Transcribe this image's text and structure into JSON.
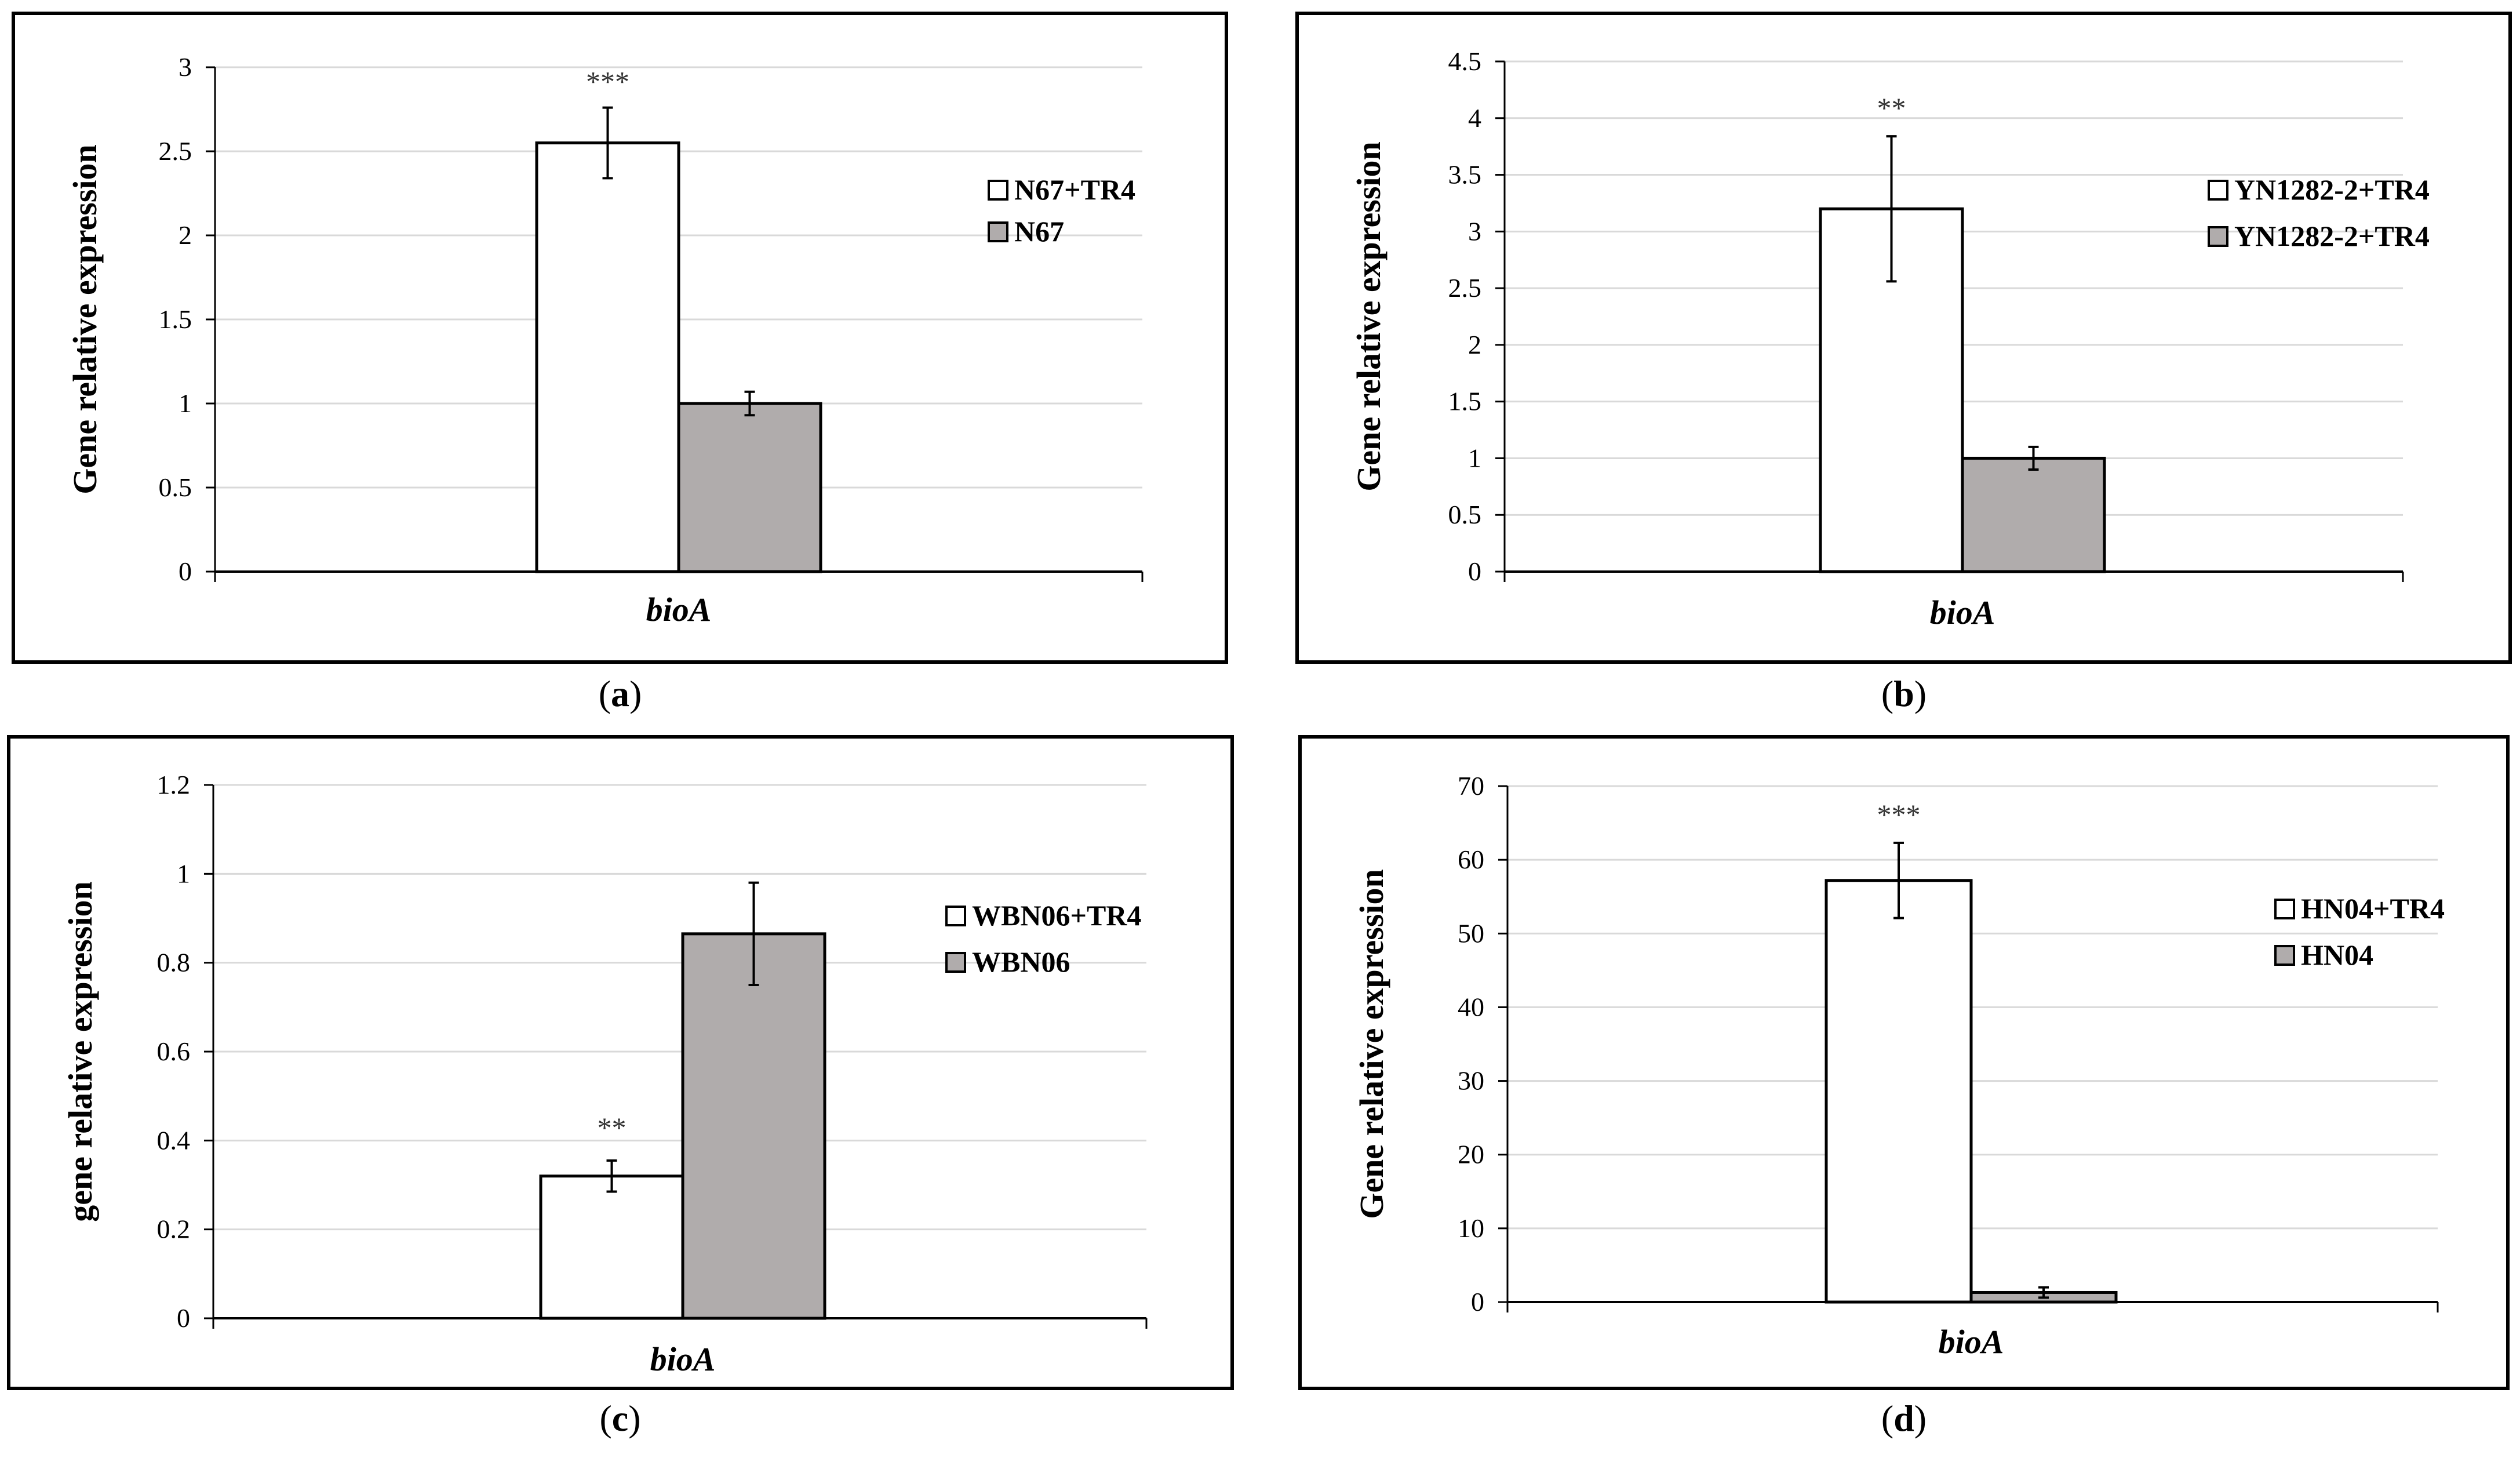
{
  "figure": {
    "captions": [
      "(a)",
      "(b)",
      "(c)",
      "(d)"
    ],
    "caption_letters": [
      "a",
      "b",
      "c",
      "d"
    ]
  },
  "colors": {
    "bar_treated": "#ffffff",
    "bar_control": "#b0acac",
    "grid": "#d9d9d9",
    "axis": "#000000",
    "stroke": "#000000"
  },
  "chart_data": [
    {
      "id": "a",
      "type": "bar",
      "categories": [
        "bioA"
      ],
      "ylabel": "Gene relative expression",
      "xlabel": "bioA",
      "ylim": [
        0,
        3
      ],
      "yticks": [
        0,
        0.5,
        1,
        1.5,
        2,
        2.5,
        3
      ],
      "ytick_labels": [
        "0",
        "0.5",
        "1",
        "1.5",
        "2",
        "2.5",
        "3"
      ],
      "legend_position": "right",
      "series": [
        {
          "name": "N67+TR4",
          "values": [
            2.55
          ],
          "error": [
            0.21
          ],
          "significance": "***"
        },
        {
          "name": "N67",
          "values": [
            1.0
          ],
          "error": [
            0.07
          ],
          "significance": ""
        }
      ]
    },
    {
      "id": "b",
      "type": "bar",
      "categories": [
        "bioA"
      ],
      "ylabel": "Gene relative expression",
      "xlabel": "bioA",
      "ylim": [
        0,
        4.5
      ],
      "yticks": [
        0,
        0.5,
        1,
        1.5,
        2,
        2.5,
        3,
        3.5,
        4,
        4.5
      ],
      "ytick_labels": [
        "0",
        "0.5",
        "1",
        "1.5",
        "2",
        "2.5",
        "3",
        "3.5",
        "4",
        "4.5"
      ],
      "legend_position": "right",
      "series": [
        {
          "name": "YN1282-2+TR4",
          "values": [
            3.2
          ],
          "error": [
            0.64
          ],
          "significance": "**"
        },
        {
          "name": "YN1282-2+TR4",
          "values": [
            1.0
          ],
          "error": [
            0.1
          ],
          "significance": ""
        }
      ]
    },
    {
      "id": "c",
      "type": "bar",
      "categories": [
        "bioA"
      ],
      "ylabel": "gene relative expression",
      "xlabel": "bioA",
      "ylim": [
        0,
        1.2
      ],
      "yticks": [
        0,
        0.2,
        0.4,
        0.6,
        0.8,
        1,
        1.2
      ],
      "ytick_labels": [
        "0",
        "0.2",
        "0.4",
        "0.6",
        "0.8",
        "1",
        "1.2"
      ],
      "legend_position": "right",
      "series": [
        {
          "name": "WBN06+TR4",
          "values": [
            0.32
          ],
          "error": [
            0.035
          ],
          "significance": "**"
        },
        {
          "name": "WBN06",
          "values": [
            0.865
          ],
          "error": [
            0.115
          ],
          "significance": ""
        }
      ]
    },
    {
      "id": "d",
      "type": "bar",
      "categories": [
        "bioA"
      ],
      "ylabel": "Gene relative expression",
      "xlabel": "bioA",
      "ylim": [
        0,
        70
      ],
      "yticks": [
        0,
        10,
        20,
        30,
        40,
        50,
        60,
        70
      ],
      "ytick_labels": [
        "0",
        "10",
        "20",
        "30",
        "40",
        "50",
        "60",
        "70"
      ],
      "legend_position": "right",
      "series": [
        {
          "name": "HN04+TR4",
          "values": [
            57.2
          ],
          "error": [
            5.1
          ],
          "significance": "***"
        },
        {
          "name": "HN04",
          "values": [
            1.3
          ],
          "error": [
            0.7
          ],
          "significance": ""
        }
      ]
    }
  ]
}
